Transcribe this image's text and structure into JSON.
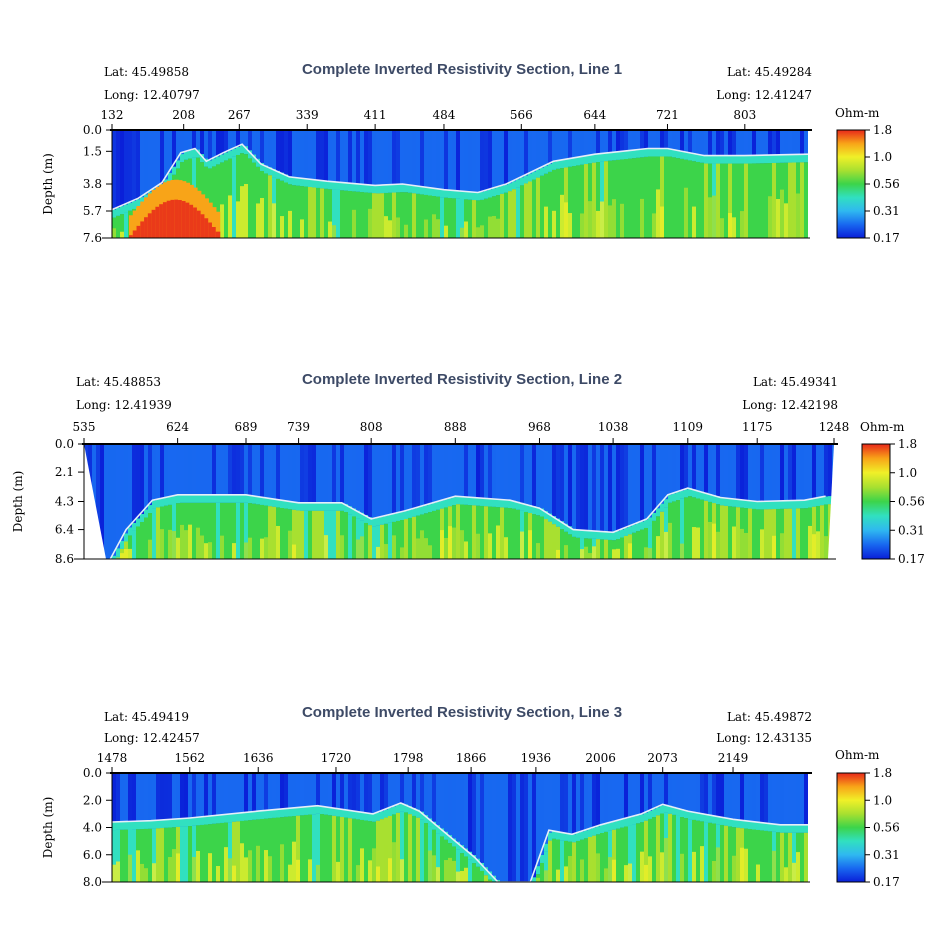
{
  "colors": {
    "title": "#3d4a66",
    "boundary_line": "#e6eef8",
    "colorscale": [
      "#0a1fd8",
      "#1868f0",
      "#2fb8f0",
      "#31e0c0",
      "#3cd44a",
      "#a8e030",
      "#f0f028",
      "#f8a418",
      "#e8281a"
    ]
  },
  "colorbar": {
    "unit": "Ohm-m",
    "ticks": [
      "1.8",
      "1.0",
      "0.56",
      "0.31",
      "0.17"
    ]
  },
  "chart_data": [
    {
      "type": "heatmap",
      "title": "Complete Inverted Resistivity Section, Line 1",
      "start": {
        "lat": "Lat: 45.49858",
        "long": "Long: 12.40797"
      },
      "end": {
        "lat": "Lat: 45.49284",
        "long": "Long: 12.41247"
      },
      "x_ticks": [
        "132",
        "208",
        "267",
        "339",
        "411",
        "484",
        "566",
        "644",
        "721",
        "803"
      ],
      "x_range": [
        132,
        870
      ],
      "ylabel": "Depth (m)",
      "y_ticks": [
        "0.0",
        "1.5",
        "3.8",
        "5.7",
        "7.6"
      ],
      "ylim": [
        0,
        7.6
      ],
      "boundary_depth": [
        [
          132,
          5.6
        ],
        [
          160,
          4.8
        ],
        [
          185,
          3.7
        ],
        [
          205,
          1.6
        ],
        [
          220,
          1.3
        ],
        [
          232,
          2.2
        ],
        [
          250,
          1.6
        ],
        [
          270,
          1.0
        ],
        [
          290,
          2.4
        ],
        [
          320,
          3.3
        ],
        [
          360,
          3.6
        ],
        [
          411,
          3.9
        ],
        [
          440,
          3.8
        ],
        [
          484,
          4.2
        ],
        [
          520,
          4.4
        ],
        [
          550,
          3.8
        ],
        [
          600,
          2.2
        ],
        [
          644,
          1.7
        ],
        [
          700,
          1.3
        ],
        [
          721,
          1.3
        ],
        [
          760,
          1.8
        ],
        [
          803,
          1.8
        ],
        [
          870,
          1.7
        ]
      ],
      "hot_zone": {
        "x": [
          150,
          245
        ],
        "depth": [
          3.5,
          7.6
        ]
      }
    },
    {
      "type": "heatmap",
      "title": "Complete Inverted Resistivity Section, Line 2",
      "start": {
        "lat": "Lat: 45.48853",
        "long": "Long: 12.41939"
      },
      "end": {
        "lat": "Lat: 45.49341",
        "long": "Long: 12.42198"
      },
      "x_ticks": [
        "535",
        "624",
        "689",
        "739",
        "808",
        "888",
        "968",
        "1038",
        "1109",
        "1175",
        "1248"
      ],
      "x_range": [
        535,
        1248
      ],
      "ylabel": "Depth (m)",
      "y_ticks": [
        "0.0",
        "2.1",
        "4.3",
        "6.4",
        "8.6"
      ],
      "ylim": [
        0,
        8.6
      ],
      "boundary_depth": [
        [
          560,
          8.6
        ],
        [
          575,
          6.4
        ],
        [
          600,
          4.2
        ],
        [
          624,
          3.8
        ],
        [
          689,
          3.8
        ],
        [
          739,
          4.4
        ],
        [
          780,
          4.4
        ],
        [
          808,
          5.6
        ],
        [
          840,
          5.0
        ],
        [
          888,
          3.9
        ],
        [
          940,
          4.2
        ],
        [
          968,
          4.8
        ],
        [
          1000,
          6.4
        ],
        [
          1038,
          6.6
        ],
        [
          1070,
          5.6
        ],
        [
          1090,
          3.8
        ],
        [
          1109,
          3.3
        ],
        [
          1140,
          4.0
        ],
        [
          1175,
          4.3
        ],
        [
          1220,
          4.2
        ],
        [
          1240,
          3.9
        ]
      ],
      "hot_zone": null
    },
    {
      "type": "heatmap",
      "title": "Complete Inverted Resistivity Section, Line 3",
      "start": {
        "lat": "Lat: 45.49419",
        "long": "Long: 12.42457"
      },
      "end": {
        "lat": "Lat: 45.49872",
        "long": "Long: 12.43135"
      },
      "x_ticks": [
        "1478",
        "1562",
        "1636",
        "1720",
        "1798",
        "1866",
        "1936",
        "2006",
        "2073",
        "2149"
      ],
      "x_range": [
        1478,
        2230
      ],
      "ylabel": "Depth (m)",
      "y_ticks": [
        "0.0",
        "2.0",
        "4.0",
        "6.0",
        "8.0"
      ],
      "ylim": [
        0,
        8.0
      ],
      "boundary_depth": [
        [
          1478,
          3.6
        ],
        [
          1520,
          3.5
        ],
        [
          1562,
          3.3
        ],
        [
          1636,
          2.8
        ],
        [
          1700,
          2.4
        ],
        [
          1760,
          3.0
        ],
        [
          1790,
          2.2
        ],
        [
          1810,
          2.8
        ],
        [
          1840,
          4.5
        ],
        [
          1870,
          6.2
        ],
        [
          1895,
          8.0
        ],
        [
          1930,
          8.0
        ],
        [
          1950,
          4.2
        ],
        [
          1975,
          4.5
        ],
        [
          2006,
          3.8
        ],
        [
          2050,
          3.0
        ],
        [
          2073,
          2.3
        ],
        [
          2100,
          2.8
        ],
        [
          2149,
          3.4
        ],
        [
          2200,
          3.8
        ],
        [
          2230,
          3.8
        ]
      ],
      "hot_zone": null
    }
  ]
}
